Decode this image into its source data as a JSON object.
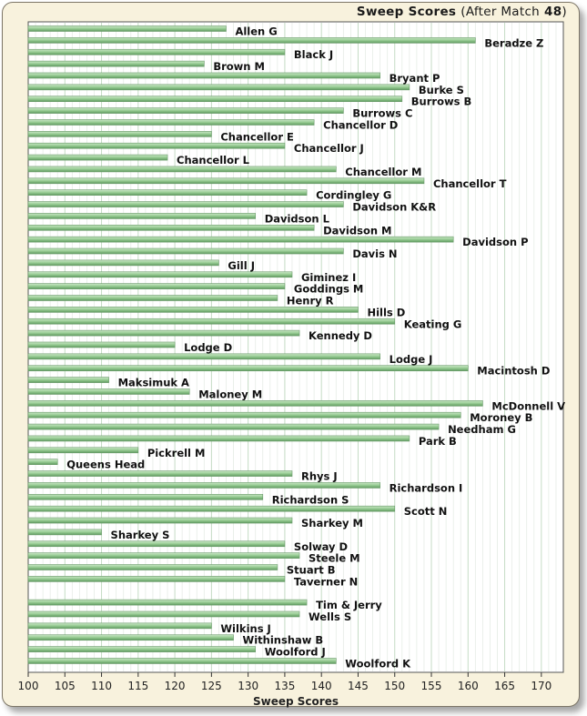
{
  "chart_data": {
    "type": "bar",
    "orientation": "horizontal",
    "title": "Sweep Scores",
    "title_suffix_open": "(After Match",
    "title_match": "48",
    "title_suffix_close": ")",
    "xlabel": "Sweep Scores",
    "ylabel": "",
    "xlim": [
      100,
      173
    ],
    "xticks": [
      100,
      105,
      110,
      115,
      120,
      125,
      130,
      135,
      140,
      145,
      150,
      155,
      160,
      165,
      170
    ],
    "categories": [
      "Allen G",
      "Beradze Z",
      "Black J",
      "Brown M",
      "Bryant P",
      "Burke S",
      "Burrows B",
      "Burrows C",
      "Chancellor D",
      "Chancellor E",
      "Chancellor J",
      "Chancellor L",
      "Chancellor M",
      "Chancellor T",
      "Cordingley G",
      "Davidson K&R",
      "Davidson L",
      "Davidson M",
      "Davidson P",
      "Davis N",
      "Gill J",
      "Giminez I",
      "Goddings M",
      "Henry R",
      "Hills D",
      "Keating G",
      "Kennedy D",
      "Lodge D",
      "Lodge J",
      "Macintosh D",
      "Maksimuk A",
      "Maloney M",
      "McDonnell V",
      "Moroney B",
      "Needham G",
      "Park B",
      "Pickrell M",
      "Queens Head",
      "Rhys J",
      "Richardson I",
      "Richardson S",
      "Scott N",
      "Sharkey M",
      "Sharkey S",
      "Solway D",
      "Steele M",
      "Stuart B",
      "Taverner N",
      "",
      "Tim & Jerry",
      "Wells S",
      "Wilkins J",
      "Withinshaw B",
      "Woolford J",
      "Woolford K"
    ],
    "values": [
      127,
      161,
      135,
      124,
      148,
      152,
      151,
      143,
      139,
      125,
      135,
      119,
      142,
      154,
      138,
      143,
      131,
      139,
      158,
      143,
      126,
      136,
      135,
      134,
      145,
      150,
      137,
      120,
      148,
      160,
      111,
      122,
      162,
      159,
      156,
      152,
      115,
      104,
      136,
      148,
      132,
      150,
      136,
      110,
      135,
      137,
      134,
      135,
      null,
      138,
      137,
      125,
      128,
      131,
      142
    ],
    "bar_color": "#8fc38f",
    "gridlines": true,
    "legend": "none"
  }
}
